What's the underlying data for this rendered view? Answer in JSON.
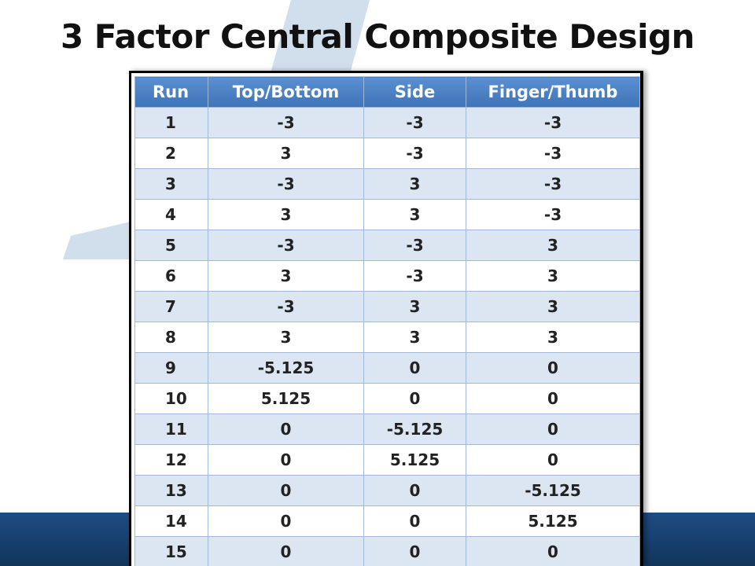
{
  "title": "3 Factor Central Composite Design",
  "colors": {
    "header_bg": "#4a80c2",
    "row_shade": "#dce6f2",
    "band": "#1a4577",
    "star": "#c9d8e8"
  },
  "table": {
    "headers": [
      "Run",
      "Top/Bottom",
      "Side",
      "Finger/Thumb"
    ],
    "rows": [
      [
        "1",
        "-3",
        "-3",
        "-3"
      ],
      [
        "2",
        "3",
        "-3",
        "-3"
      ],
      [
        "3",
        "-3",
        "3",
        "-3"
      ],
      [
        "4",
        "3",
        "3",
        "-3"
      ],
      [
        "5",
        "-3",
        "-3",
        "3"
      ],
      [
        "6",
        "3",
        "-3",
        "3"
      ],
      [
        "7",
        "-3",
        "3",
        "3"
      ],
      [
        "8",
        "3",
        "3",
        "3"
      ],
      [
        "9",
        "-5.125",
        "0",
        "0"
      ],
      [
        "10",
        "5.125",
        "0",
        "0"
      ],
      [
        "11",
        "0",
        "-5.125",
        "0"
      ],
      [
        "12",
        "0",
        "5.125",
        "0"
      ],
      [
        "13",
        "0",
        "0",
        "-5.125"
      ],
      [
        "14",
        "0",
        "0",
        "5.125"
      ],
      [
        "15",
        "0",
        "0",
        "0"
      ]
    ]
  }
}
